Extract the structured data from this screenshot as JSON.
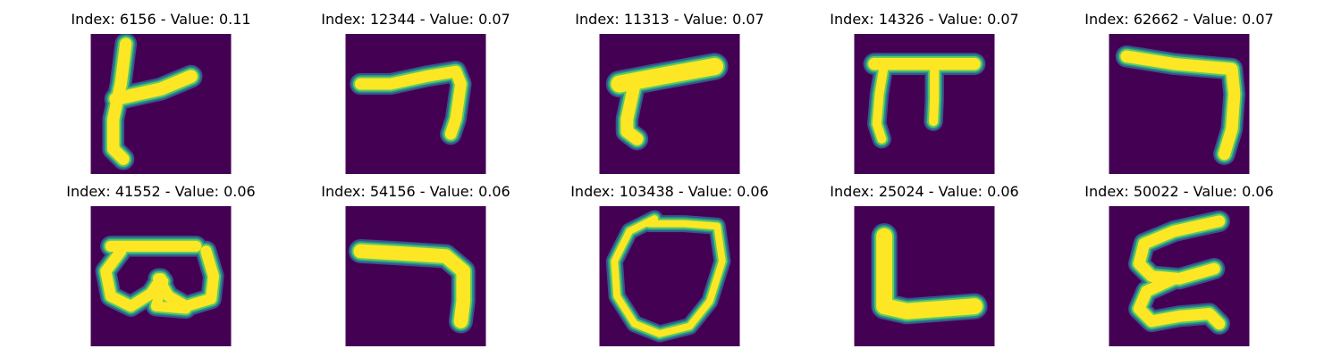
{
  "background_color": "#440154",
  "stroke_colors": {
    "core": "#fde725",
    "mid": "#5ec962",
    "edge": "#21918c",
    "fringe": "#3b528b"
  },
  "panels": [
    {
      "title": "Index: 6156 - Value: 0.11",
      "glyph": "tall-stroke-with-rising-crossbar"
    },
    {
      "title": "Index: 12344 - Value: 0.07",
      "glyph": "horizontal-bar-with-right-descender"
    },
    {
      "title": "Index: 11313 - Value: 0.07",
      "glyph": "thick-diagonal-bar-with-left-foot"
    },
    {
      "title": "Index: 14326 - Value: 0.07",
      "glyph": "pi-shape"
    },
    {
      "title": "Index: 62662 - Value: 0.07",
      "glyph": "seven-like-hook"
    },
    {
      "title": "Index: 41552 - Value: 0.06",
      "glyph": "double-loop"
    },
    {
      "title": "Index: 54156 - Value: 0.06",
      "glyph": "thick-seven-like-hook"
    },
    {
      "title": "Index: 103438 - Value: 0.06",
      "glyph": "open-ring"
    },
    {
      "title": "Index: 25024 - Value: 0.06",
      "glyph": "l-shape"
    },
    {
      "title": "Index: 50022 - Value: 0.06",
      "glyph": "triple-wave"
    }
  ]
}
